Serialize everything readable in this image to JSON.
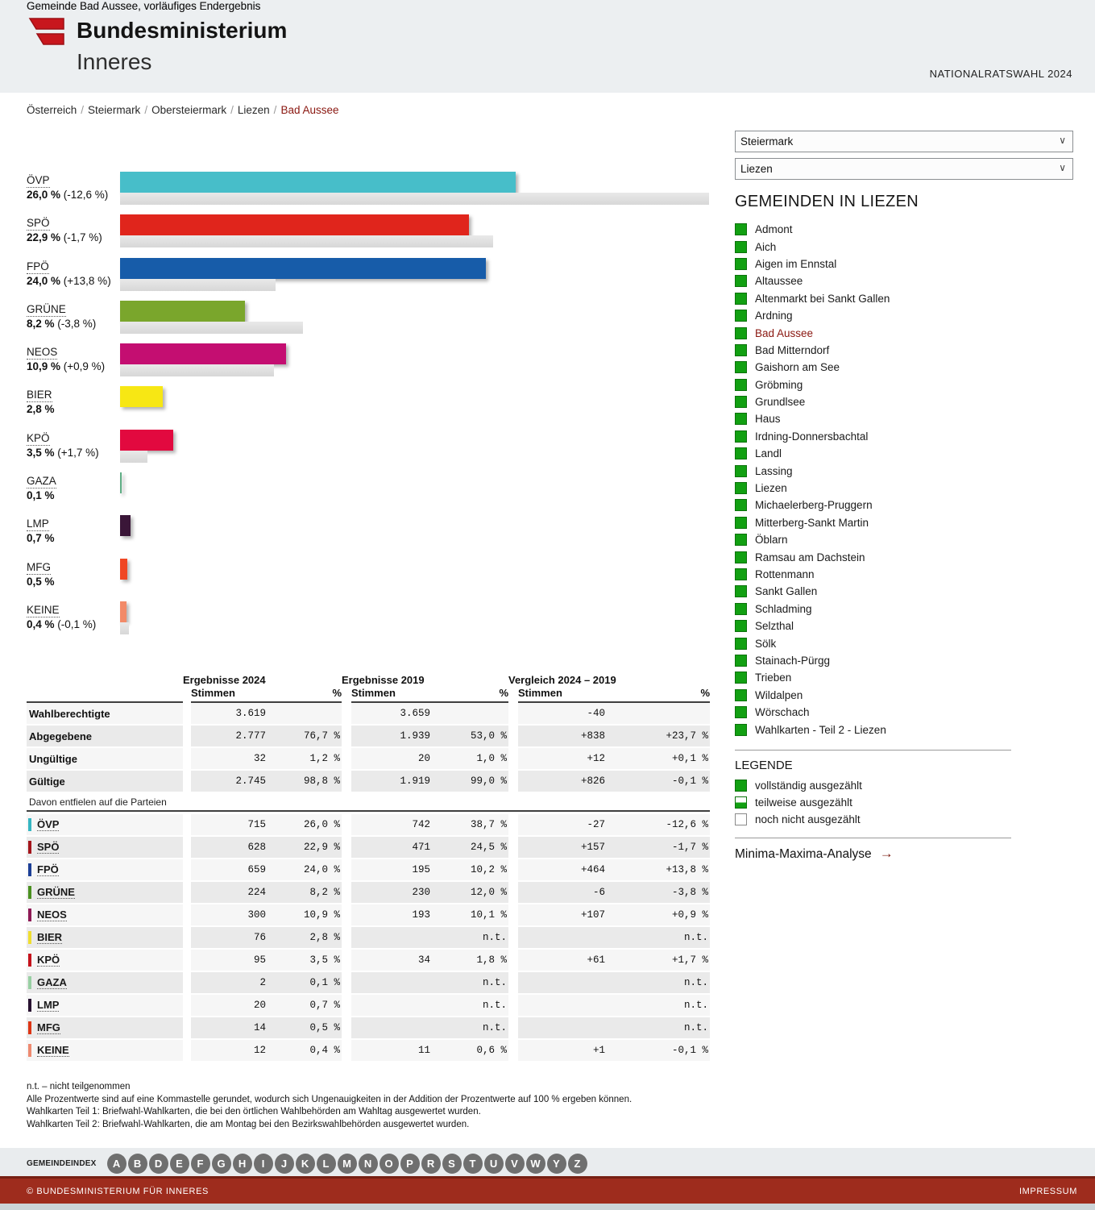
{
  "header": {
    "ministry_line1": "Bundesministerium",
    "ministry_line2": "Inneres",
    "election_label": "NATIONALRATSWAHL 2024"
  },
  "breadcrumb": {
    "items": [
      "Österreich",
      "Steiermark",
      "Obersteiermark",
      "Liezen"
    ],
    "current": "Bad Aussee",
    "separator": "/"
  },
  "chart": {
    "title": "Gemeinde Bad Aussee, vorläufiges Endergebnis"
  },
  "chart_data": {
    "type": "bar",
    "orientation": "horizontal",
    "title": "Gemeinde Bad Aussee, vorläufiges Endergebnis",
    "categories": [
      "ÖVP",
      "SPÖ",
      "FPÖ",
      "GRÜNE",
      "NEOS",
      "BIER",
      "KPÖ",
      "GAZA",
      "LMP",
      "MFG",
      "KEINE"
    ],
    "series": [
      {
        "name": "2024",
        "values": [
          26.0,
          22.9,
          24.0,
          8.2,
          10.9,
          2.8,
          3.5,
          0.1,
          0.7,
          0.5,
          0.4
        ]
      },
      {
        "name": "2019",
        "values": [
          38.7,
          24.5,
          10.2,
          12.0,
          10.1,
          null,
          1.8,
          null,
          null,
          null,
          0.6
        ]
      }
    ],
    "unit": "%"
  },
  "parties": [
    {
      "code": "ÖVP",
      "color": "#47bec9",
      "chip": "#35b6c2",
      "chart": {
        "pct": 26.0,
        "pct_label": "26,0 %",
        "diff_label": "(-12,6 %)",
        "pct2019": 38.7
      },
      "table": {
        "s24": "715",
        "p24": "26,0 %",
        "s19": "742",
        "p19": "38,7 %",
        "sd": "-27",
        "pd": "-12,6 %"
      }
    },
    {
      "code": "SPÖ",
      "color": "#e0251c",
      "chip": "#a3141a",
      "chart": {
        "pct": 22.9,
        "pct_label": "22,9 %",
        "diff_label": "(-1,7 %)",
        "pct2019": 24.5
      },
      "table": {
        "s24": "628",
        "p24": "22,9 %",
        "s19": "471",
        "p19": "24,5 %",
        "sd": "+157",
        "pd": "-1,7 %"
      }
    },
    {
      "code": "FPÖ",
      "color": "#175ca9",
      "chip": "#1c3f96",
      "chart": {
        "pct": 24.0,
        "pct_label": "24,0 %",
        "diff_label": "(+13,8 %)",
        "pct2019": 10.2
      },
      "table": {
        "s24": "659",
        "p24": "24,0 %",
        "s19": "195",
        "p19": "10,2 %",
        "sd": "+464",
        "pd": "+13,8 %"
      }
    },
    {
      "code": "GRÜNE",
      "color": "#7aa62c",
      "chip": "#4a9020",
      "chart": {
        "pct": 8.2,
        "pct_label": "8,2 %",
        "diff_label": "(-3,8 %)",
        "pct2019": 12.0
      },
      "table": {
        "s24": "224",
        "p24": "8,2 %",
        "s19": "230",
        "p19": "12,0 %",
        "sd": "-6",
        "pd": "-3,8 %"
      }
    },
    {
      "code": "NEOS",
      "color": "#c40e71",
      "chip": "#8e1a55",
      "chart": {
        "pct": 10.9,
        "pct_label": "10,9 %",
        "diff_label": "(+0,9 %)",
        "pct2019": 10.1
      },
      "table": {
        "s24": "300",
        "p24": "10,9 %",
        "s19": "193",
        "p19": "10,1 %",
        "sd": "+107",
        "pd": "+0,9 %"
      }
    },
    {
      "code": "BIER",
      "color": "#f7e714",
      "chip": "#f0de30",
      "chart": {
        "pct": 2.8,
        "pct_label": "2,8 %",
        "diff_label": "",
        "pct2019": null
      },
      "table": {
        "s24": "76",
        "p24": "2,8 %",
        "s19": "",
        "p19": "n.t.",
        "sd": "",
        "pd": "n.t."
      }
    },
    {
      "code": "KPÖ",
      "color": "#e2093f",
      "chip": "#c5121c",
      "chart": {
        "pct": 3.5,
        "pct_label": "3,5 %",
        "diff_label": "(+1,7 %)",
        "pct2019": 1.8
      },
      "table": {
        "s24": "95",
        "p24": "3,5 %",
        "s19": "34",
        "p19": "1,8 %",
        "sd": "+61",
        "pd": "+1,7 %"
      }
    },
    {
      "code": "GAZA",
      "color": "#5fae85",
      "chip": "#98d0a3",
      "chart": {
        "pct": 0.1,
        "pct_label": "0,1 %",
        "diff_label": "",
        "pct2019": null
      },
      "table": {
        "s24": "2",
        "p24": "0,1 %",
        "s19": "",
        "p19": "n.t.",
        "sd": "",
        "pd": "n.t."
      }
    },
    {
      "code": "LMP",
      "color": "#3a1638",
      "chip": "#281231",
      "chart": {
        "pct": 0.7,
        "pct_label": "0,7 %",
        "diff_label": "",
        "pct2019": null
      },
      "table": {
        "s24": "20",
        "p24": "0,7 %",
        "s19": "",
        "p19": "n.t.",
        "sd": "",
        "pd": "n.t."
      }
    },
    {
      "code": "MFG",
      "color": "#f04724",
      "chip": "#dd3514",
      "chart": {
        "pct": 0.5,
        "pct_label": "0,5 %",
        "diff_label": "",
        "pct2019": null
      },
      "table": {
        "s24": "14",
        "p24": "0,5 %",
        "s19": "",
        "p19": "n.t.",
        "sd": "",
        "pd": "n.t."
      }
    },
    {
      "code": "KEINE",
      "color": "#f28a68",
      "chip": "#ee8a70",
      "chart": {
        "pct": 0.4,
        "pct_label": "0,4 %",
        "diff_label": "(-0,1 %)",
        "pct2019": 0.6
      },
      "table": {
        "s24": "12",
        "p24": "0,4 %",
        "s19": "11",
        "p19": "0,6 %",
        "sd": "+1",
        "pd": "-0,1 %"
      }
    }
  ],
  "table": {
    "title": "Gemeinde Bad Aussee, vorläufiges Endergebnis",
    "groups": [
      {
        "title": "Ergebnisse 2024"
      },
      {
        "title": "Ergebnisse 2019"
      },
      {
        "title": "Vergleich 2024 – 2019"
      }
    ],
    "col_stimmen": "Stimmen",
    "col_pct": "%",
    "section_label": "Davon entfielen auf die Parteien",
    "summary_rows": [
      {
        "label": "Wahlberechtigte",
        "s24": "3.619",
        "p24": "",
        "s19": "3.659",
        "p19": "",
        "sd": "-40",
        "pd": ""
      },
      {
        "label": "Abgegebene",
        "s24": "2.777",
        "p24": "76,7 %",
        "s19": "1.939",
        "p19": "53,0 %",
        "sd": "+838",
        "pd": "+23,7 %"
      },
      {
        "label": "Ungültige",
        "s24": "32",
        "p24": "1,2 %",
        "s19": "20",
        "p19": "1,0 %",
        "sd": "+12",
        "pd": "+0,1 %"
      },
      {
        "label": "Gültige",
        "s24": "2.745",
        "p24": "98,8 %",
        "s19": "1.919",
        "p19": "99,0 %",
        "sd": "+826",
        "pd": "-0,1 %"
      }
    ]
  },
  "footnotes": [
    "n.t. – nicht teilgenommen",
    "Alle Prozentwerte sind auf eine Kommastelle gerundet, wodurch sich Ungenauigkeiten in der Addition der Prozentwerte auf 100 % ergeben können.",
    "Wahlkarten Teil 1: Briefwahl-Wahlkarten, die bei den örtlichen Wahlbehörden am Wahltag ausgewertet wurden.",
    "Wahlkarten Teil 2: Briefwahl-Wahlkarten, die am Montag bei den Bezirkswahlbehörden ausgewertet wurden."
  ],
  "sidebar": {
    "province_select": {
      "value": "Steiermark"
    },
    "district_select": {
      "value": "Liezen"
    },
    "heading": "GEMEINDEN IN LIEZEN",
    "current": "Bad Aussee",
    "municipalities": [
      "Admont",
      "Aich",
      "Aigen im Ennstal",
      "Altaussee",
      "Altenmarkt bei Sankt Gallen",
      "Ardning",
      "Bad Aussee",
      "Bad Mitterndorf",
      "Gaishorn am See",
      "Gröbming",
      "Grundlsee",
      "Haus",
      "Irdning-Donnersbachtal",
      "Landl",
      "Lassing",
      "Liezen",
      "Michaelerberg-Pruggern",
      "Mitterberg-Sankt Martin",
      "Öblarn",
      "Ramsau am Dachstein",
      "Rottenmann",
      "Sankt Gallen",
      "Schladming",
      "Selzthal",
      "Sölk",
      "Stainach-Pürgg",
      "Trieben",
      "Wildalpen",
      "Wörschach",
      "Wahlkarten - Teil 2 - Liezen"
    ]
  },
  "legend": {
    "heading": "LEGENDE",
    "items": [
      {
        "label": "vollständig ausgezählt",
        "type": "full"
      },
      {
        "label": "teilweise ausgezählt",
        "type": "partial"
      },
      {
        "label": "noch nicht ausgezählt",
        "type": "none"
      }
    ]
  },
  "analysis_link": {
    "label": "Minima-Maxima-Analyse",
    "arrow": "→"
  },
  "gemeindeindex": {
    "label": "GEMEINDEINDEX",
    "letters": [
      "A",
      "B",
      "D",
      "E",
      "F",
      "G",
      "H",
      "I",
      "J",
      "K",
      "L",
      "M",
      "N",
      "O",
      "P",
      "R",
      "S",
      "T",
      "U",
      "V",
      "W",
      "Y",
      "Z"
    ]
  },
  "footer": {
    "copyright": "© BUNDESMINISTERIUM FÜR INNERES",
    "impressum": "IMPRESSUM"
  },
  "colors": {
    "accent_red": "#8a1710",
    "legend_green": "#12a012",
    "footer_red": "#9e2c1d",
    "bar_2019_gray": "#e0e0e0"
  }
}
